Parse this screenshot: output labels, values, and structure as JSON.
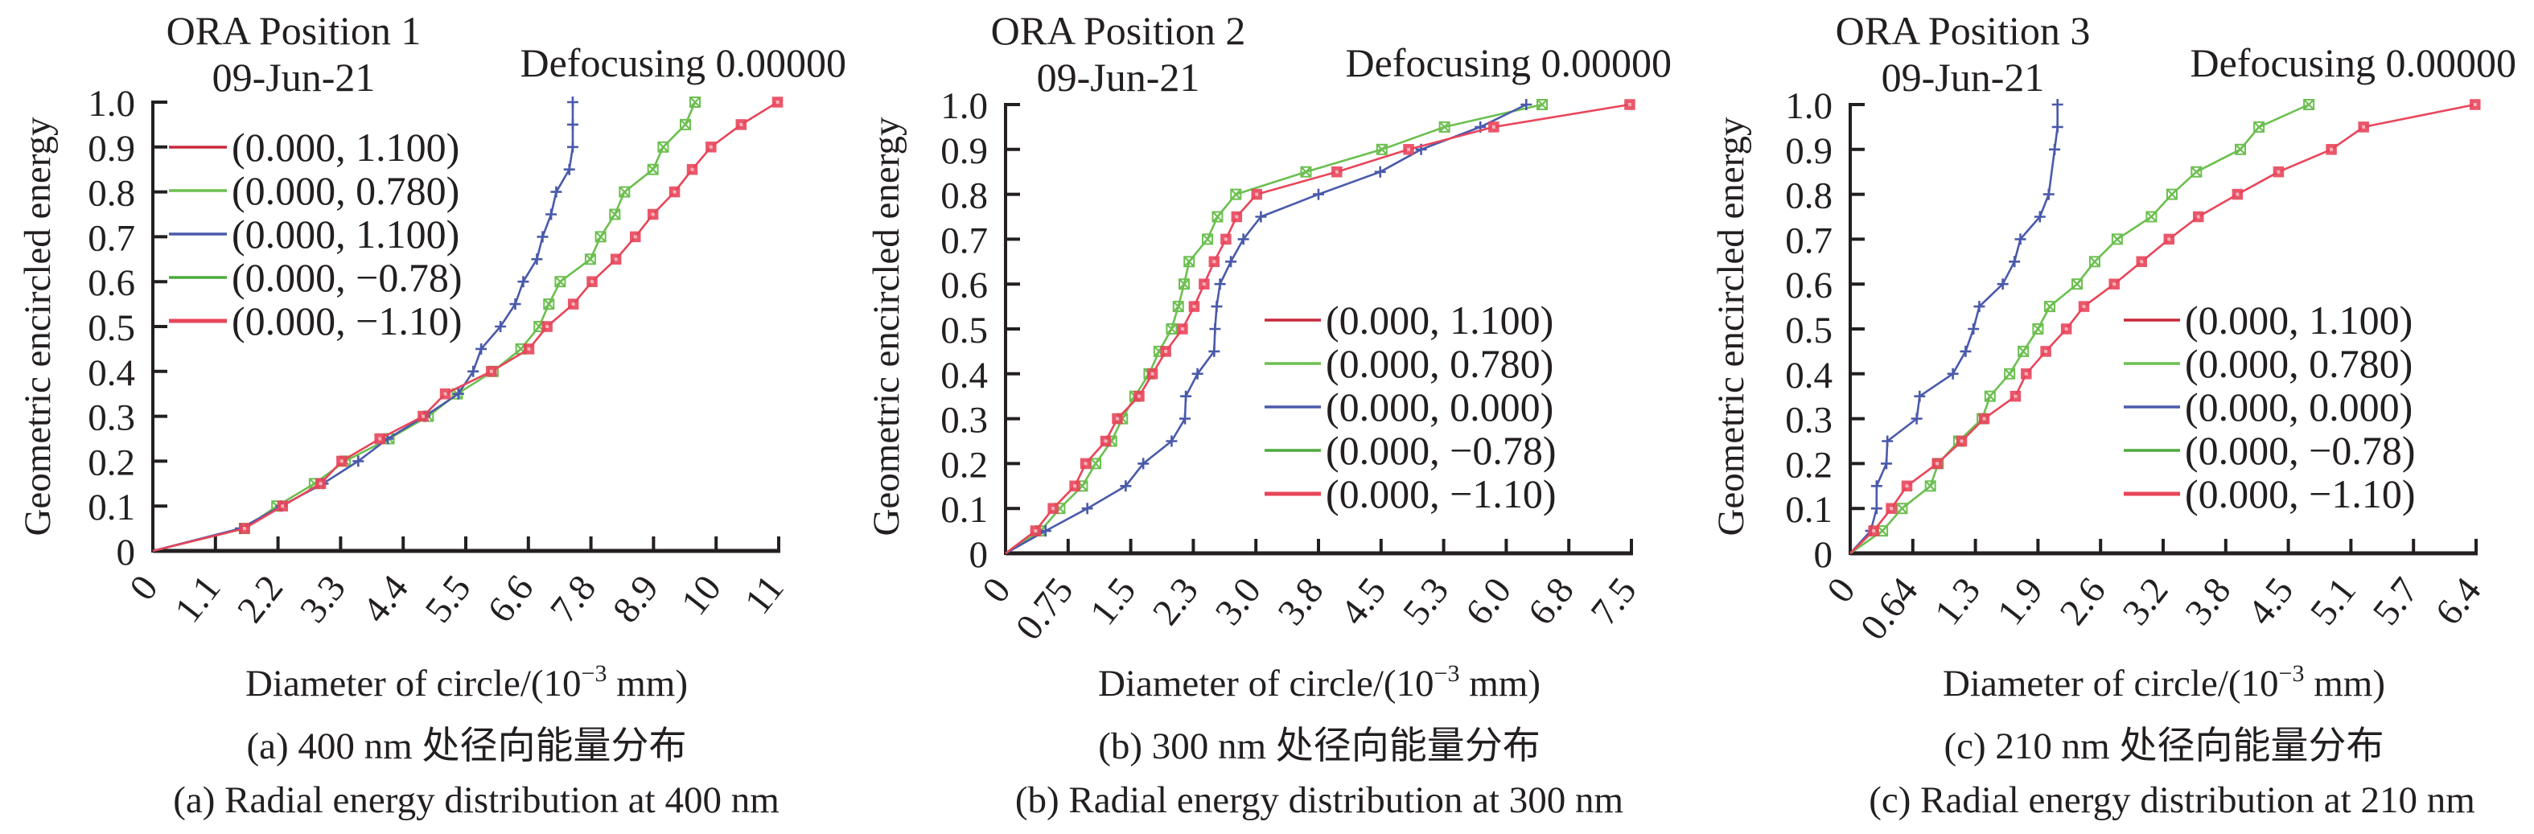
{
  "chart_data": [
    {
      "type": "line",
      "id": "a",
      "title": "ORA Position 1",
      "date": "09-Jun-21",
      "defocus_label": "Defocusing 0.00000",
      "xlabel_main": "Diameter of circle/(10",
      "xlabel_exp": "−3",
      "xlabel_unit": " mm)",
      "ylabel": "Geometric encircled energy",
      "caption_cn": "(a) 400 nm 处径向能量分布",
      "caption_en": "(a) Radial energy distribution at 400 nm",
      "xlim": [
        0,
        11
      ],
      "ylim": [
        0,
        1.0
      ],
      "xticks": [
        "0",
        "1.1",
        "2.2",
        "3.3",
        "4.4",
        "5.5",
        "6.6",
        "7.8",
        "8.9",
        "10",
        "11"
      ],
      "yticks": [
        "0",
        "0.1",
        "0.2",
        "0.3",
        "0.4",
        "0.5",
        "0.6",
        "0.7",
        "0.8",
        "0.9",
        "1.0"
      ],
      "legend_position": "upper-left",
      "series": [
        {
          "name": "(0.000, 1.100)",
          "color": "#c8283a",
          "marker": "none",
          "x": [],
          "y": []
        },
        {
          "name": "(0.000, 0.780)",
          "color": "#6cbf50",
          "marker": "x-square",
          "x": [
            0,
            1.61,
            2.18,
            2.84,
            3.38,
            4.15,
            4.84,
            5.35,
            5.98,
            6.47,
            6.79,
            6.96,
            7.16,
            7.69,
            7.87,
            8.12,
            8.29,
            8.79,
            8.97,
            9.36,
            9.53
          ],
          "y": [
            0,
            0.05,
            0.1,
            0.15,
            0.2,
            0.25,
            0.3,
            0.35,
            0.4,
            0.45,
            0.5,
            0.55,
            0.6,
            0.65,
            0.7,
            0.75,
            0.8,
            0.85,
            0.9,
            0.95,
            1.0
          ]
        },
        {
          "name": "(0.000, 1.100)",
          "color": "#4a5aaa",
          "marker": "plus",
          "x": [
            0,
            1.54,
            2.26,
            2.99,
            3.61,
            4.13,
            4.78,
            5.37,
            5.63,
            5.77,
            6.11,
            6.37,
            6.51,
            6.75,
            6.85,
            7.0,
            7.09,
            7.32,
            7.38,
            7.38,
            7.38
          ],
          "y": [
            0,
            0.05,
            0.1,
            0.15,
            0.2,
            0.25,
            0.3,
            0.35,
            0.4,
            0.45,
            0.5,
            0.55,
            0.6,
            0.65,
            0.7,
            0.75,
            0.8,
            0.85,
            0.9,
            0.95,
            1.0
          ]
        },
        {
          "name": "(0.000, −0.78)",
          "color": "#4caa3c",
          "marker": "none",
          "x": [],
          "y": []
        },
        {
          "name": "(0.000, −1.10)",
          "color": "#e8455a",
          "marker": "square",
          "x": [
            0,
            1.61,
            2.28,
            2.95,
            3.32,
            3.99,
            4.75,
            5.14,
            5.95,
            6.61,
            6.93,
            7.39,
            7.72,
            8.14,
            8.48,
            8.79,
            9.17,
            9.48,
            9.81,
            10.34,
            10.98
          ],
          "y": [
            0,
            0.05,
            0.1,
            0.15,
            0.2,
            0.25,
            0.3,
            0.35,
            0.4,
            0.45,
            0.5,
            0.55,
            0.6,
            0.65,
            0.7,
            0.75,
            0.8,
            0.85,
            0.9,
            0.95,
            1.0
          ]
        }
      ]
    },
    {
      "type": "line",
      "id": "b",
      "title": "ORA Position 2",
      "date": "09-Jun-21",
      "defocus_label": "Defocusing 0.00000",
      "xlabel_main": "Diameter of circle/(10",
      "xlabel_exp": "−3",
      "xlabel_unit": " mm)",
      "ylabel": "Geometric encircled energy",
      "caption_cn": "(b) 300 nm 处径向能量分布",
      "caption_en": "(b) Radial energy distribution at 300 nm",
      "xlim": [
        0,
        7.5
      ],
      "ylim": [
        0,
        1.0
      ],
      "xticks": [
        "0",
        "0.75",
        "1.5",
        "2.3",
        "3.0",
        "3.8",
        "4.5",
        "5.3",
        "6.0",
        "6.8",
        "7.5"
      ],
      "yticks": [
        "0",
        "0.1",
        "0.2",
        "0.3",
        "0.4",
        "0.5",
        "0.6",
        "0.7",
        "0.8",
        "0.9",
        "1.0"
      ],
      "legend_position": "center-right",
      "series": [
        {
          "name": "(0.000, 1.100)",
          "color": "#c8283a",
          "marker": "none",
          "x": [],
          "y": []
        },
        {
          "name": "(0.000, 0.780)",
          "color": "#6cbf50",
          "marker": "x-square",
          "x": [
            0,
            0.42,
            0.65,
            0.92,
            1.08,
            1.27,
            1.4,
            1.55,
            1.72,
            1.84,
            1.99,
            2.07,
            2.14,
            2.2,
            2.42,
            2.54,
            2.76,
            3.6,
            4.51,
            5.26,
            6.43
          ],
          "y": [
            0,
            0.05,
            0.1,
            0.15,
            0.2,
            0.25,
            0.3,
            0.35,
            0.4,
            0.45,
            0.5,
            0.55,
            0.6,
            0.65,
            0.7,
            0.75,
            0.8,
            0.85,
            0.9,
            0.95,
            1.0
          ]
        },
        {
          "name": "(0.000, 0.000)",
          "color": "#4a5aaa",
          "marker": "plus",
          "x": [
            0,
            0.48,
            0.98,
            1.44,
            1.65,
            1.99,
            2.15,
            2.16,
            2.3,
            2.5,
            2.51,
            2.53,
            2.57,
            2.7,
            2.85,
            3.06,
            3.75,
            4.49,
            4.98,
            5.69,
            6.24
          ],
          "y": [
            0,
            0.05,
            0.1,
            0.15,
            0.2,
            0.25,
            0.3,
            0.35,
            0.4,
            0.45,
            0.5,
            0.55,
            0.6,
            0.65,
            0.7,
            0.75,
            0.8,
            0.85,
            0.9,
            0.95,
            1.0
          ]
        },
        {
          "name": "(0.000, −0.78)",
          "color": "#4caa3c",
          "marker": "none",
          "x": [],
          "y": []
        },
        {
          "name": "(0.000, −1.10)",
          "color": "#e8455a",
          "marker": "square",
          "x": [
            0,
            0.36,
            0.57,
            0.83,
            0.96,
            1.2,
            1.34,
            1.6,
            1.76,
            1.92,
            2.12,
            2.26,
            2.38,
            2.5,
            2.64,
            2.77,
            3.01,
            3.97,
            4.83,
            5.85,
            7.48
          ],
          "y": [
            0,
            0.05,
            0.1,
            0.15,
            0.2,
            0.25,
            0.3,
            0.35,
            0.4,
            0.45,
            0.5,
            0.55,
            0.6,
            0.65,
            0.7,
            0.75,
            0.8,
            0.85,
            0.9,
            0.95,
            1.0
          ]
        }
      ]
    },
    {
      "type": "line",
      "id": "c",
      "title": "ORA Position 3",
      "date": "09-Jun-21",
      "defocus_label": "Defocusing 0.00000",
      "xlabel_main": "Diameter of circle/(10",
      "xlabel_exp": "−3",
      "xlabel_unit": " mm)",
      "ylabel": "Geometric encircled energy",
      "caption_cn": "(c) 210 nm 处径向能量分布",
      "caption_en": "(c) Radial energy distribution at 210 nm",
      "xlim": [
        0,
        6.4
      ],
      "ylim": [
        0,
        1.0
      ],
      "xticks": [
        "0",
        "0.64",
        "1.3",
        "1.9",
        "2.6",
        "3.2",
        "3.8",
        "4.5",
        "5.1",
        "5.7",
        "6.4"
      ],
      "yticks": [
        "0",
        "0.1",
        "0.2",
        "0.3",
        "0.4",
        "0.5",
        "0.6",
        "0.7",
        "0.8",
        "0.9",
        "1.0"
      ],
      "legend_position": "center-right",
      "series": [
        {
          "name": "(0.000, 1.100)",
          "color": "#c8283a",
          "marker": "none",
          "x": [],
          "y": []
        },
        {
          "name": "(0.000, 0.780)",
          "color": "#6cbf50",
          "marker": "x-square",
          "x": [
            0,
            0.33,
            0.53,
            0.82,
            0.9,
            1.11,
            1.35,
            1.43,
            1.63,
            1.77,
            1.92,
            2.04,
            2.32,
            2.5,
            2.73,
            3.08,
            3.29,
            3.54,
            3.99,
            4.18,
            4.69
          ],
          "y": [
            0,
            0.05,
            0.1,
            0.15,
            0.2,
            0.25,
            0.3,
            0.35,
            0.4,
            0.45,
            0.5,
            0.55,
            0.6,
            0.65,
            0.7,
            0.75,
            0.8,
            0.85,
            0.9,
            0.95,
            1.0
          ]
        },
        {
          "name": "(0.000, 0.000)",
          "color": "#4a5aaa",
          "marker": "plus",
          "x": [
            0,
            0.21,
            0.27,
            0.27,
            0.37,
            0.38,
            0.68,
            0.71,
            1.05,
            1.18,
            1.26,
            1.32,
            1.56,
            1.68,
            1.74,
            1.94,
            2.03,
            2.09,
            2.12,
            2.12
          ],
          "y": [
            0,
            0.05,
            0.1,
            0.15,
            0.2,
            0.25,
            0.3,
            0.35,
            0.4,
            0.45,
            0.5,
            0.55,
            0.6,
            0.65,
            0.7,
            0.75,
            0.8,
            0.9,
            0.95,
            1.0
          ]
        },
        {
          "name": "(0.000, −0.78)",
          "color": "#4caa3c",
          "marker": "none",
          "x": [],
          "y": []
        },
        {
          "name": "(0.000, −1.10)",
          "color": "#e8455a",
          "marker": "square",
          "x": [
            0,
            0.24,
            0.42,
            0.58,
            0.89,
            1.14,
            1.37,
            1.69,
            1.8,
            2.0,
            2.21,
            2.39,
            2.7,
            2.98,
            3.26,
            3.56,
            3.96,
            4.38,
            4.92,
            5.25,
            6.39
          ],
          "y": [
            0,
            0.05,
            0.1,
            0.15,
            0.2,
            0.25,
            0.3,
            0.35,
            0.4,
            0.45,
            0.5,
            0.55,
            0.6,
            0.65,
            0.7,
            0.75,
            0.8,
            0.85,
            0.9,
            0.95,
            1.0
          ]
        }
      ]
    }
  ]
}
